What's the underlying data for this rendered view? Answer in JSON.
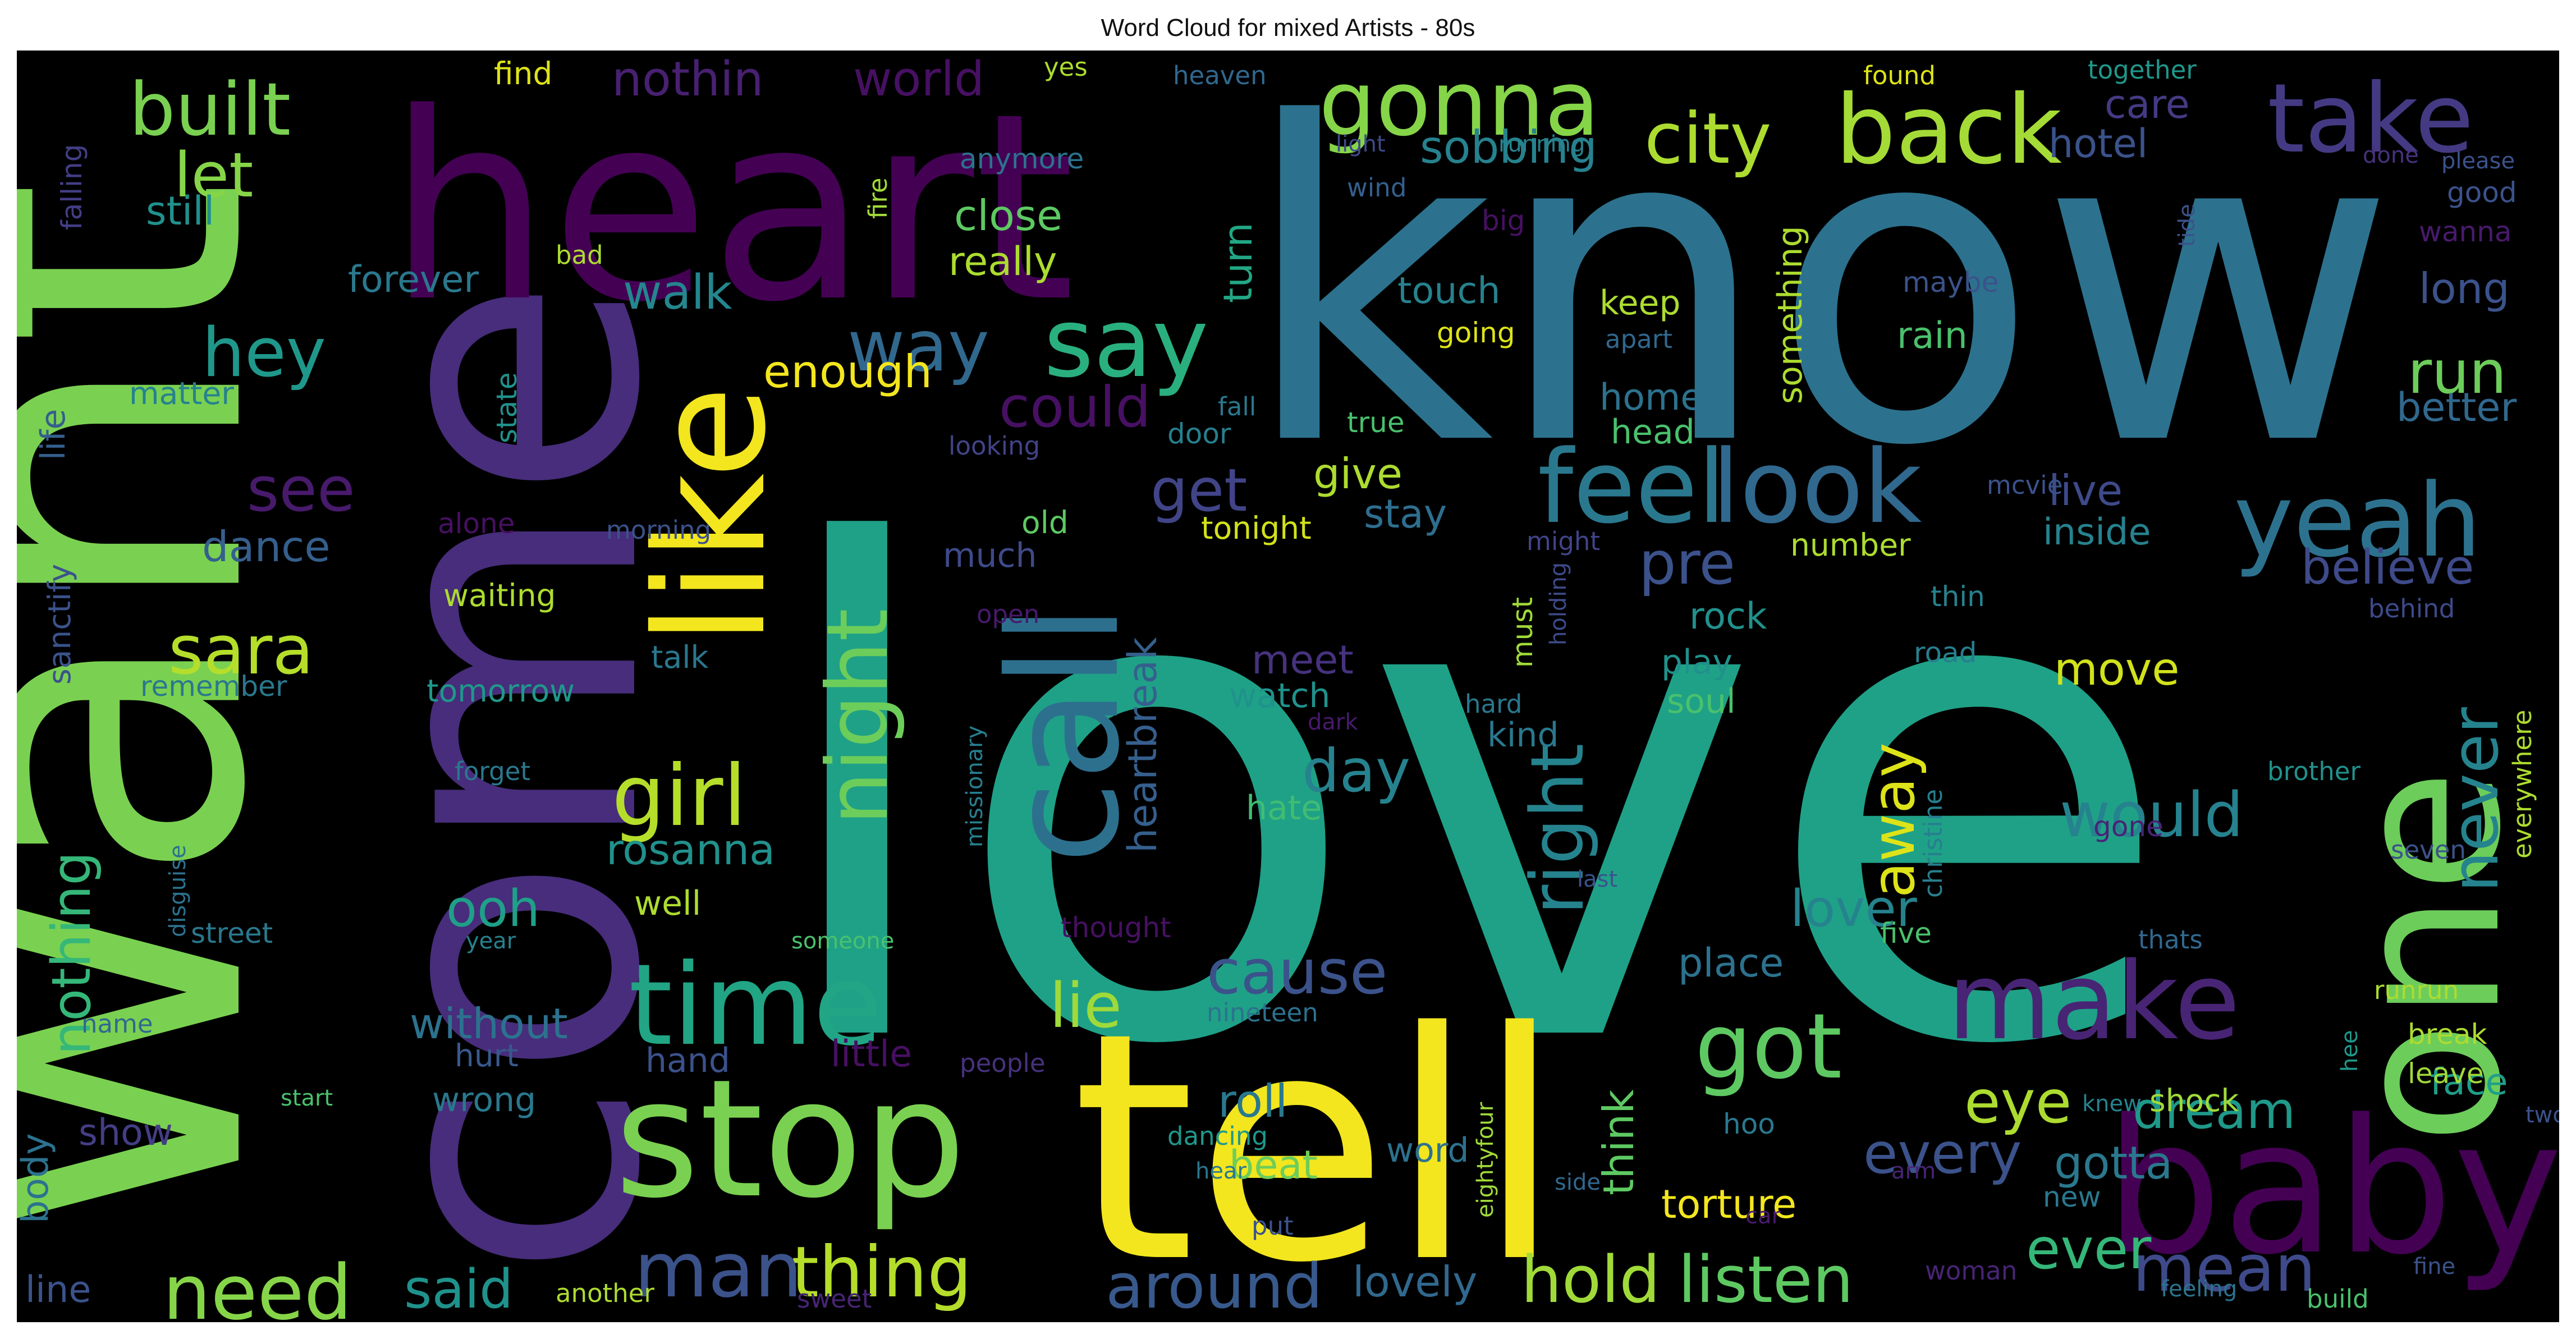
{
  "title": "Word Cloud for mixed Artists - 80s",
  "colors": {
    "background": "#000000",
    "title_text": "#111111",
    "palette": {
      "p1": "#440154",
      "p2": "#46327e",
      "p3": "#365c8d",
      "p4": "#277f8e",
      "p5": "#1fa187",
      "p6": "#4ac16d",
      "p7": "#a0da39",
      "p8": "#fde725"
    }
  },
  "words": [
    {
      "text": "love",
      "color": "#1fa187",
      "rotate": false
    },
    {
      "text": "know",
      "color": "#2c728e",
      "rotate": false
    },
    {
      "text": "want",
      "color": "#7ad151",
      "rotate": true
    },
    {
      "text": "come",
      "color": "#472d7b",
      "rotate": true
    },
    {
      "text": "heart",
      "color": "#440154",
      "rotate": false
    },
    {
      "text": "tell",
      "color": "#f3e61e",
      "rotate": false
    },
    {
      "text": "one",
      "color": "#6ccd5a",
      "rotate": true
    },
    {
      "text": "baby",
      "color": "#440154",
      "rotate": false
    },
    {
      "text": "stop",
      "color": "#7ad151",
      "rotate": false
    },
    {
      "text": "call",
      "color": "#2d708e",
      "rotate": true
    },
    {
      "text": "like",
      "color": "#f3e61e",
      "rotate": true
    },
    {
      "text": "time",
      "color": "#21a585",
      "rotate": false
    },
    {
      "text": "make",
      "color": "#482475",
      "rotate": false
    },
    {
      "text": "look",
      "color": "#31688e",
      "rotate": false
    },
    {
      "text": "feel",
      "color": "#2a788e",
      "rotate": false
    },
    {
      "text": "yeah",
      "color": "#2c728e",
      "rotate": false
    },
    {
      "text": "say",
      "color": "#2ab07f",
      "rotate": false
    },
    {
      "text": "back",
      "color": "#a5db36",
      "rotate": false
    },
    {
      "text": "take",
      "color": "#443a83",
      "rotate": false
    },
    {
      "text": "gonna",
      "color": "#86d549",
      "rotate": false
    },
    {
      "text": "got",
      "color": "#5ec962",
      "rotate": false
    },
    {
      "text": "girl",
      "color": "#b5de2b",
      "rotate": false
    },
    {
      "text": "night",
      "color": "#6ccd5a",
      "rotate": true
    },
    {
      "text": "need",
      "color": "#86d549",
      "rotate": false
    },
    {
      "text": "way",
      "color": "#31688e",
      "rotate": false
    },
    {
      "text": "built",
      "color": "#7ad151",
      "rotate": false
    },
    {
      "text": "city",
      "color": "#addc30",
      "rotate": false
    },
    {
      "text": "hey",
      "color": "#1f988b",
      "rotate": false
    },
    {
      "text": "right",
      "color": "#25838e",
      "rotate": true
    },
    {
      "text": "thing",
      "color": "#b5de2b",
      "rotate": false
    },
    {
      "text": "man",
      "color": "#3b528b",
      "rotate": false
    },
    {
      "text": "hold",
      "color": "#a0da39",
      "rotate": false
    },
    {
      "text": "listen",
      "color": "#5ec962",
      "rotate": false
    },
    {
      "text": "mean",
      "color": "#3e4a89",
      "rotate": false
    },
    {
      "text": "ever",
      "color": "#35b779",
      "rotate": false
    },
    {
      "text": "never",
      "color": "#25838e",
      "rotate": true
    },
    {
      "text": "sara",
      "color": "#b5de2b",
      "rotate": false
    },
    {
      "text": "cause",
      "color": "#3b528b",
      "rotate": false
    },
    {
      "text": "around",
      "color": "#38598c",
      "rotate": false
    },
    {
      "text": "see",
      "color": "#481a6c",
      "rotate": false
    },
    {
      "text": "get",
      "color": "#414487",
      "rotate": false
    },
    {
      "text": "could",
      "color": "#471063",
      "rotate": false
    },
    {
      "text": "run",
      "color": "#6ccd5a",
      "rotate": false
    },
    {
      "text": "away",
      "color": "#dde318",
      "rotate": true
    },
    {
      "text": "day",
      "color": "#26828e",
      "rotate": false
    },
    {
      "text": "lie",
      "color": "#9fda3a",
      "rotate": false
    },
    {
      "text": "would",
      "color": "#26828e",
      "rotate": false
    },
    {
      "text": "let",
      "color": "#86d549",
      "rotate": false
    },
    {
      "text": "eye",
      "color": "#addc30",
      "rotate": false
    },
    {
      "text": "every",
      "color": "#3b528b",
      "rotate": false
    },
    {
      "text": "nothing",
      "color": "#35b779",
      "rotate": true
    },
    {
      "text": "pre",
      "color": "#3b528b",
      "rotate": false
    },
    {
      "text": "dream",
      "color": "#1f998a",
      "rotate": false
    },
    {
      "text": "said",
      "color": "#20928c",
      "rotate": false
    },
    {
      "text": "lover",
      "color": "#25838e",
      "rotate": false
    },
    {
      "text": "lovely",
      "color": "#31688e",
      "rotate": false
    },
    {
      "text": "ooh",
      "color": "#1fa088",
      "rotate": false
    },
    {
      "text": "believe",
      "color": "#3e4a89",
      "rotate": false
    },
    {
      "text": "enough",
      "color": "#f3e61e",
      "rotate": false
    },
    {
      "text": "walk",
      "color": "#24868e",
      "rotate": false
    },
    {
      "text": "sobbing",
      "color": "#26828e",
      "rotate": false
    },
    {
      "text": "world",
      "color": "#471063",
      "rotate": false
    },
    {
      "text": "nothin",
      "color": "#482071",
      "rotate": false
    },
    {
      "text": "close",
      "color": "#5ec962",
      "rotate": false
    },
    {
      "text": "really",
      "color": "#addc30",
      "rotate": false
    },
    {
      "text": "heartbreak",
      "color": "#355f8d",
      "rotate": true
    },
    {
      "text": "rosanna",
      "color": "#21918c",
      "rotate": false
    },
    {
      "text": "gotta",
      "color": "#2a788e",
      "rotate": false
    },
    {
      "text": "torture",
      "color": "#f3e61e",
      "rotate": false
    },
    {
      "text": "without",
      "color": "#2c728e",
      "rotate": false
    },
    {
      "text": "think",
      "color": "#5ec962",
      "rotate": true
    },
    {
      "text": "roll",
      "color": "#2a788e",
      "rotate": false
    },
    {
      "text": "dance",
      "color": "#355f8d",
      "rotate": false
    },
    {
      "text": "give",
      "color": "#addc30",
      "rotate": false
    },
    {
      "text": "stay",
      "color": "#2e6e8e",
      "rotate": false
    },
    {
      "text": "live",
      "color": "#3e4a89",
      "rotate": false
    },
    {
      "text": "inside",
      "color": "#26828e",
      "rotate": false
    },
    {
      "text": "move",
      "color": "#d2e21b",
      "rotate": false
    },
    {
      "text": "long",
      "color": "#3b528b",
      "rotate": false
    },
    {
      "text": "better",
      "color": "#31688e",
      "rotate": false
    },
    {
      "text": "still",
      "color": "#21918c",
      "rotate": false
    },
    {
      "text": "forever",
      "color": "#2a788e",
      "rotate": false
    },
    {
      "text": "turn",
      "color": "#22a785",
      "rotate": true
    },
    {
      "text": "meet",
      "color": "#46327e",
      "rotate": false
    },
    {
      "text": "watch",
      "color": "#20928c",
      "rotate": false
    },
    {
      "text": "hate",
      "color": "#40bd72",
      "rotate": false
    },
    {
      "text": "beat",
      "color": "#6ccd5a",
      "rotate": false
    },
    {
      "text": "face",
      "color": "#1f9e89",
      "rotate": false
    },
    {
      "text": "place",
      "color": "#2c728e",
      "rotate": false
    },
    {
      "text": "hotel",
      "color": "#3b528b",
      "rotate": false
    },
    {
      "text": "care",
      "color": "#443a83",
      "rotate": false
    },
    {
      "text": "rain",
      "color": "#4ac16d",
      "rotate": false
    },
    {
      "text": "keep",
      "color": "#addc30",
      "rotate": false
    },
    {
      "text": "touch",
      "color": "#26828e",
      "rotate": false
    },
    {
      "text": "home",
      "color": "#2c728e",
      "rotate": false
    },
    {
      "text": "head",
      "color": "#4ac16d",
      "rotate": false
    },
    {
      "text": "something",
      "color": "#addc30",
      "rotate": true
    },
    {
      "text": "number",
      "color": "#addc30",
      "rotate": false
    },
    {
      "text": "rock",
      "color": "#21918c",
      "rotate": false
    },
    {
      "text": "play",
      "color": "#21918c",
      "rotate": false
    },
    {
      "text": "soul",
      "color": "#4ac16d",
      "rotate": false
    },
    {
      "text": "kind",
      "color": "#2a788e",
      "rotate": false
    },
    {
      "text": "tonight",
      "color": "#d2e21b",
      "rotate": false
    },
    {
      "text": "old",
      "color": "#5ec962",
      "rotate": false
    },
    {
      "text": "much",
      "color": "#3e4a89",
      "rotate": false
    },
    {
      "text": "waiting",
      "color": "#addc30",
      "rotate": false
    },
    {
      "text": "tomorrow",
      "color": "#1f988b",
      "rotate": false
    },
    {
      "text": "talk",
      "color": "#2a788e",
      "rotate": false
    },
    {
      "text": "well",
      "color": "#addc30",
      "rotate": false
    },
    {
      "text": "hand",
      "color": "#3b528b",
      "rotate": false
    },
    {
      "text": "little",
      "color": "#471063",
      "rotate": false
    },
    {
      "text": "hurt",
      "color": "#38598c",
      "rotate": false
    },
    {
      "text": "wrong",
      "color": "#2a788e",
      "rotate": false
    },
    {
      "text": "show",
      "color": "#433e85",
      "rotate": false
    },
    {
      "text": "body",
      "color": "#2c728e",
      "rotate": true
    },
    {
      "text": "line",
      "color": "#3b528b",
      "rotate": false
    },
    {
      "text": "life",
      "color": "#355f8d",
      "rotate": true
    },
    {
      "text": "matter",
      "color": "#26828e",
      "rotate": false
    },
    {
      "text": "sanctify",
      "color": "#3b528b",
      "rotate": true
    },
    {
      "text": "remember",
      "color": "#2a788e",
      "rotate": false
    },
    {
      "text": "falling",
      "color": "#433e85",
      "rotate": true
    },
    {
      "text": "find",
      "color": "#dde318",
      "rotate": false
    },
    {
      "text": "yes",
      "color": "#addc30",
      "rotate": false
    },
    {
      "text": "heaven",
      "color": "#31688e",
      "rotate": false
    },
    {
      "text": "anymore",
      "color": "#2c728e",
      "rotate": false
    },
    {
      "text": "fire",
      "color": "#a0da39",
      "rotate": true
    },
    {
      "text": "bad",
      "color": "#addc30",
      "rotate": false
    },
    {
      "text": "state",
      "color": "#21918c",
      "rotate": true
    },
    {
      "text": "alone",
      "color": "#471063",
      "rotate": false
    },
    {
      "text": "morning",
      "color": "#3b528b",
      "rotate": false
    },
    {
      "text": "open",
      "color": "#481a6c",
      "rotate": false
    },
    {
      "text": "looking",
      "color": "#414487",
      "rotate": false
    },
    {
      "text": "door",
      "color": "#277f8e",
      "rotate": false
    },
    {
      "text": "fall",
      "color": "#2a788e",
      "rotate": false
    },
    {
      "text": "true",
      "color": "#4ac16d",
      "rotate": false
    },
    {
      "text": "big",
      "color": "#471063",
      "rotate": false
    },
    {
      "text": "going",
      "color": "#dde318",
      "rotate": false
    },
    {
      "text": "apart",
      "color": "#31688e",
      "rotate": false
    },
    {
      "text": "maybe",
      "color": "#3b528b",
      "rotate": false
    },
    {
      "text": "light",
      "color": "#3e4a89",
      "rotate": false
    },
    {
      "text": "wind",
      "color": "#355f8d",
      "rotate": false
    },
    {
      "text": "running",
      "color": "#26828e",
      "rotate": false
    },
    {
      "text": "found",
      "color": "#dde318",
      "rotate": false
    },
    {
      "text": "together",
      "color": "#1f988b",
      "rotate": false
    },
    {
      "text": "done",
      "color": "#46327e",
      "rotate": false
    },
    {
      "text": "please",
      "color": "#3b528b",
      "rotate": false
    },
    {
      "text": "tide",
      "color": "#3b528b",
      "rotate": true
    },
    {
      "text": "good",
      "color": "#3b528b",
      "rotate": false
    },
    {
      "text": "wanna",
      "color": "#481a6c",
      "rotate": false
    },
    {
      "text": "might",
      "color": "#414487",
      "rotate": false
    },
    {
      "text": "mcvie",
      "color": "#3b528b",
      "rotate": false
    },
    {
      "text": "must",
      "color": "#a0da39",
      "rotate": true
    },
    {
      "text": "holding",
      "color": "#3e4a89",
      "rotate": true
    },
    {
      "text": "thin",
      "color": "#26828e",
      "rotate": false
    },
    {
      "text": "road",
      "color": "#277f8e",
      "rotate": false
    },
    {
      "text": "behind",
      "color": "#3e4a89",
      "rotate": false
    },
    {
      "text": "everywhere",
      "color": "#addc30",
      "rotate": true
    },
    {
      "text": "christine",
      "color": "#277f8e",
      "rotate": true
    },
    {
      "text": "brother",
      "color": "#21918c",
      "rotate": false
    },
    {
      "text": "gone",
      "color": "#482475",
      "rotate": false
    },
    {
      "text": "seven",
      "color": "#3b528b",
      "rotate": false
    },
    {
      "text": "hard",
      "color": "#2a788e",
      "rotate": false
    },
    {
      "text": "dark",
      "color": "#481a6c",
      "rotate": false
    },
    {
      "text": "missionary",
      "color": "#277f8e",
      "rotate": true
    },
    {
      "text": "last",
      "color": "#3b528b",
      "rotate": false
    },
    {
      "text": "forget",
      "color": "#2a788e",
      "rotate": false
    },
    {
      "text": "disguise",
      "color": "#2c728e",
      "rotate": true
    },
    {
      "text": "street",
      "color": "#2a788e",
      "rotate": false
    },
    {
      "text": "year",
      "color": "#26828e",
      "rotate": false
    },
    {
      "text": "someone",
      "color": "#4ac16d",
      "rotate": false
    },
    {
      "text": "thought",
      "color": "#471063",
      "rotate": false
    },
    {
      "text": "nineteen",
      "color": "#2c728e",
      "rotate": false
    },
    {
      "text": "five",
      "color": "#4ac16d",
      "rotate": false
    },
    {
      "text": "thats",
      "color": "#31688e",
      "rotate": false
    },
    {
      "text": "runrun",
      "color": "#addc30",
      "rotate": false
    },
    {
      "text": "break",
      "color": "#addc30",
      "rotate": false
    },
    {
      "text": "leave",
      "color": "#a0da39",
      "rotate": false
    },
    {
      "text": "hee",
      "color": "#1f988b",
      "rotate": true
    },
    {
      "text": "knew",
      "color": "#26828e",
      "rotate": false
    },
    {
      "text": "shock",
      "color": "#a0da39",
      "rotate": false
    },
    {
      "text": "hoo",
      "color": "#2a788e",
      "rotate": false
    },
    {
      "text": "name",
      "color": "#31688e",
      "rotate": false
    },
    {
      "text": "start",
      "color": "#4ac16d",
      "rotate": false
    },
    {
      "text": "people",
      "color": "#46327e",
      "rotate": false
    },
    {
      "text": "dancing",
      "color": "#1f988b",
      "rotate": false
    },
    {
      "text": "hear",
      "color": "#2a788e",
      "rotate": false
    },
    {
      "text": "eightyfour",
      "color": "#a0da39",
      "rotate": true
    },
    {
      "text": "side",
      "color": "#31688e",
      "rotate": false
    },
    {
      "text": "word",
      "color": "#2c728e",
      "rotate": false
    },
    {
      "text": "arm",
      "color": "#482475",
      "rotate": false
    },
    {
      "text": "put",
      "color": "#3b528b",
      "rotate": false
    },
    {
      "text": "car",
      "color": "#481a6c",
      "rotate": false
    },
    {
      "text": "new",
      "color": "#2a788e",
      "rotate": false
    },
    {
      "text": "woman",
      "color": "#482475",
      "rotate": false
    },
    {
      "text": "fine",
      "color": "#3b528b",
      "rotate": false
    },
    {
      "text": "two",
      "color": "#3b528b",
      "rotate": false
    },
    {
      "text": "another",
      "color": "#addc30",
      "rotate": false
    },
    {
      "text": "sweet",
      "color": "#482475",
      "rotate": false
    },
    {
      "text": "feeling",
      "color": "#2c728e",
      "rotate": false
    },
    {
      "text": "build",
      "color": "#4ac16d",
      "rotate": false
    }
  ]
}
